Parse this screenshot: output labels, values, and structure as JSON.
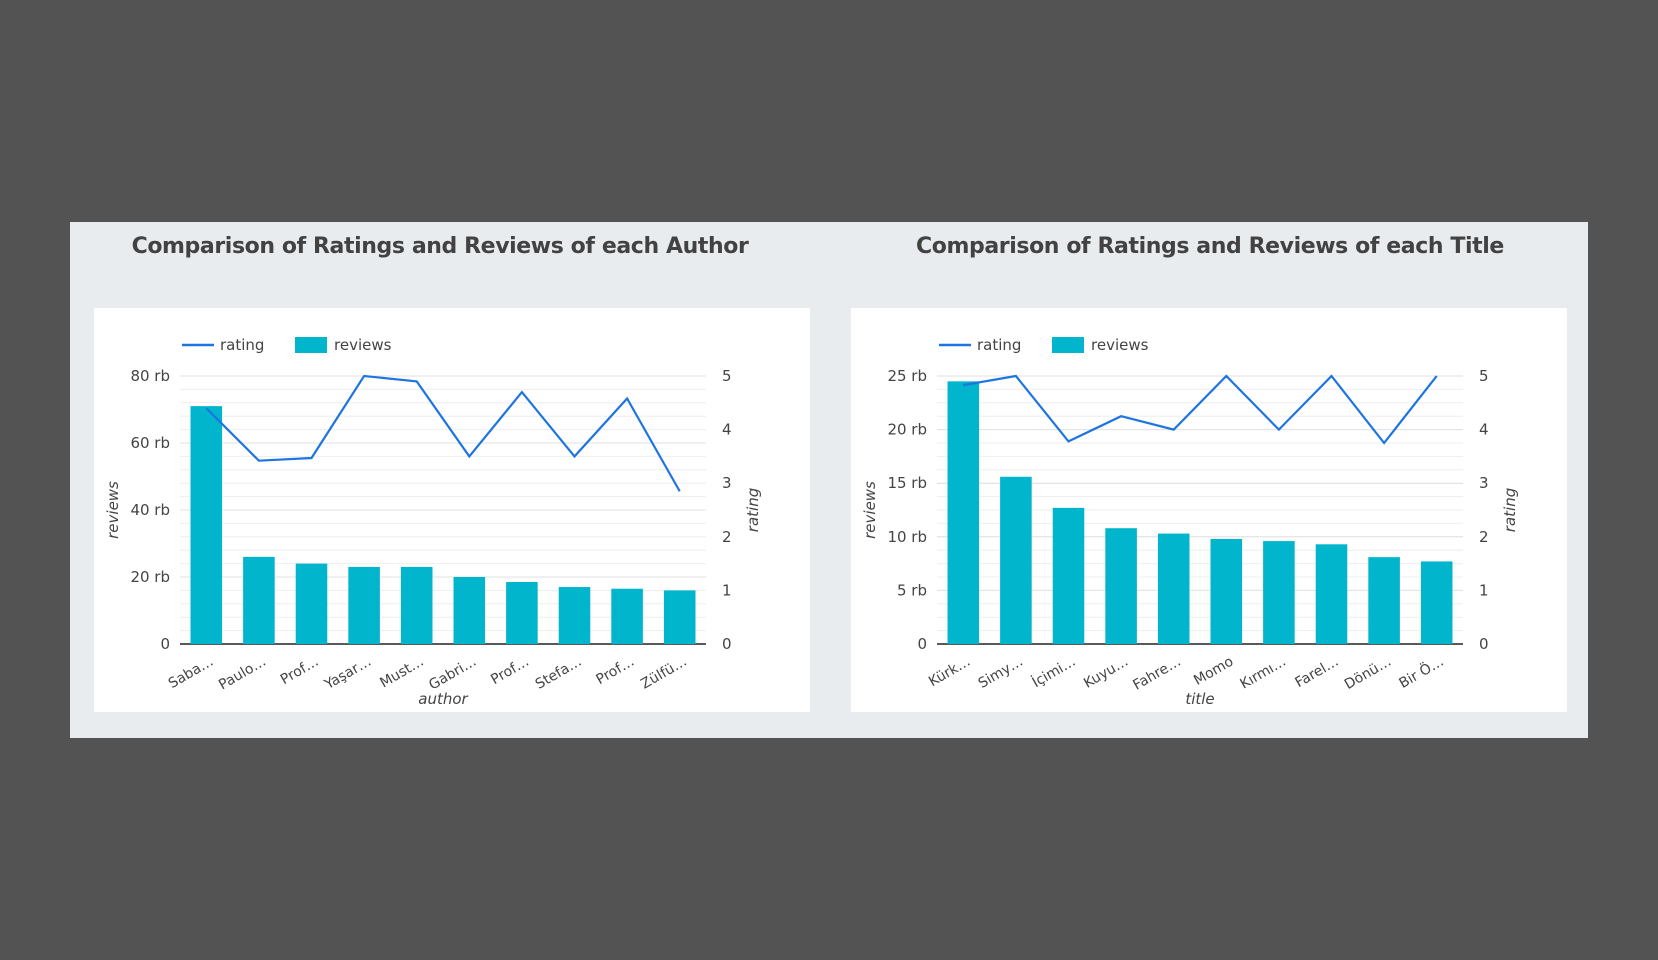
{
  "colors": {
    "bar": "#00b5cc",
    "line": "#1e74e0",
    "grid": "#e2e2e2",
    "axis": "#222222"
  },
  "chart_data": [
    {
      "type": "bar",
      "title": "Comparison of Ratings and Reviews of each Author",
      "xlabel": "author",
      "ylabel": "reviews",
      "y2label": "rating",
      "legend": [
        "rating",
        "reviews"
      ],
      "legend_position": "top-left",
      "categories": [
        "Saba…",
        "Paulo…",
        "Prof…",
        "Yaşar…",
        "Must…",
        "Gabri…",
        "Prof…",
        "Stefa…",
        "Prof…",
        "Zülfü…"
      ],
      "series": [
        {
          "name": "reviews",
          "type": "bar",
          "axis": "left",
          "values": [
            71000,
            26000,
            24000,
            23000,
            23000,
            20000,
            18500,
            17000,
            16500,
            16000
          ]
        },
        {
          "name": "rating",
          "type": "line",
          "axis": "right",
          "values": [
            4.4,
            3.42,
            3.47,
            5.0,
            4.9,
            3.5,
            4.7,
            3.5,
            4.58,
            2.85
          ]
        }
      ],
      "ylim": [
        0,
        80000
      ],
      "y_ticks": [
        0,
        20000,
        40000,
        60000,
        80000
      ],
      "y_tick_labels": [
        "0",
        "20 rb",
        "40 rb",
        "60 rb",
        "80 rb"
      ],
      "y2lim": [
        0,
        5
      ],
      "y2_ticks": [
        0,
        1,
        2,
        3,
        4,
        5
      ],
      "y2_tick_labels": [
        "0",
        "1",
        "2",
        "3",
        "4",
        "5"
      ],
      "grid": true
    },
    {
      "type": "bar",
      "title": "Comparison of Ratings and Reviews of each Title",
      "xlabel": "title",
      "ylabel": "reviews",
      "y2label": "rating",
      "legend": [
        "rating",
        "reviews"
      ],
      "legend_position": "top-left",
      "categories": [
        "Kürk…",
        "Simy…",
        "İçimi…",
        "Kuyu…",
        "Fahre…",
        "Momo",
        "Kırmı…",
        "Farel…",
        "Dönü…",
        "Bir Ö…"
      ],
      "series": [
        {
          "name": "reviews",
          "type": "bar",
          "axis": "left",
          "values": [
            24500,
            15600,
            12700,
            10800,
            10300,
            9800,
            9600,
            9300,
            8100,
            7700
          ]
        },
        {
          "name": "rating",
          "type": "line",
          "axis": "right",
          "values": [
            4.83,
            5.0,
            3.78,
            4.25,
            4.0,
            5.0,
            4.0,
            5.0,
            3.75,
            5.0
          ]
        }
      ],
      "ylim": [
        0,
        25000
      ],
      "y_ticks": [
        0,
        5000,
        10000,
        15000,
        20000,
        25000
      ],
      "y_tick_labels": [
        "0",
        "5 rb",
        "10 rb",
        "15 rb",
        "20 rb",
        "25 rb"
      ],
      "y2lim": [
        0,
        5
      ],
      "y2_ticks": [
        0,
        1,
        2,
        3,
        4,
        5
      ],
      "y2_tick_labels": [
        "0",
        "1",
        "2",
        "3",
        "4",
        "5"
      ],
      "grid": true
    }
  ]
}
